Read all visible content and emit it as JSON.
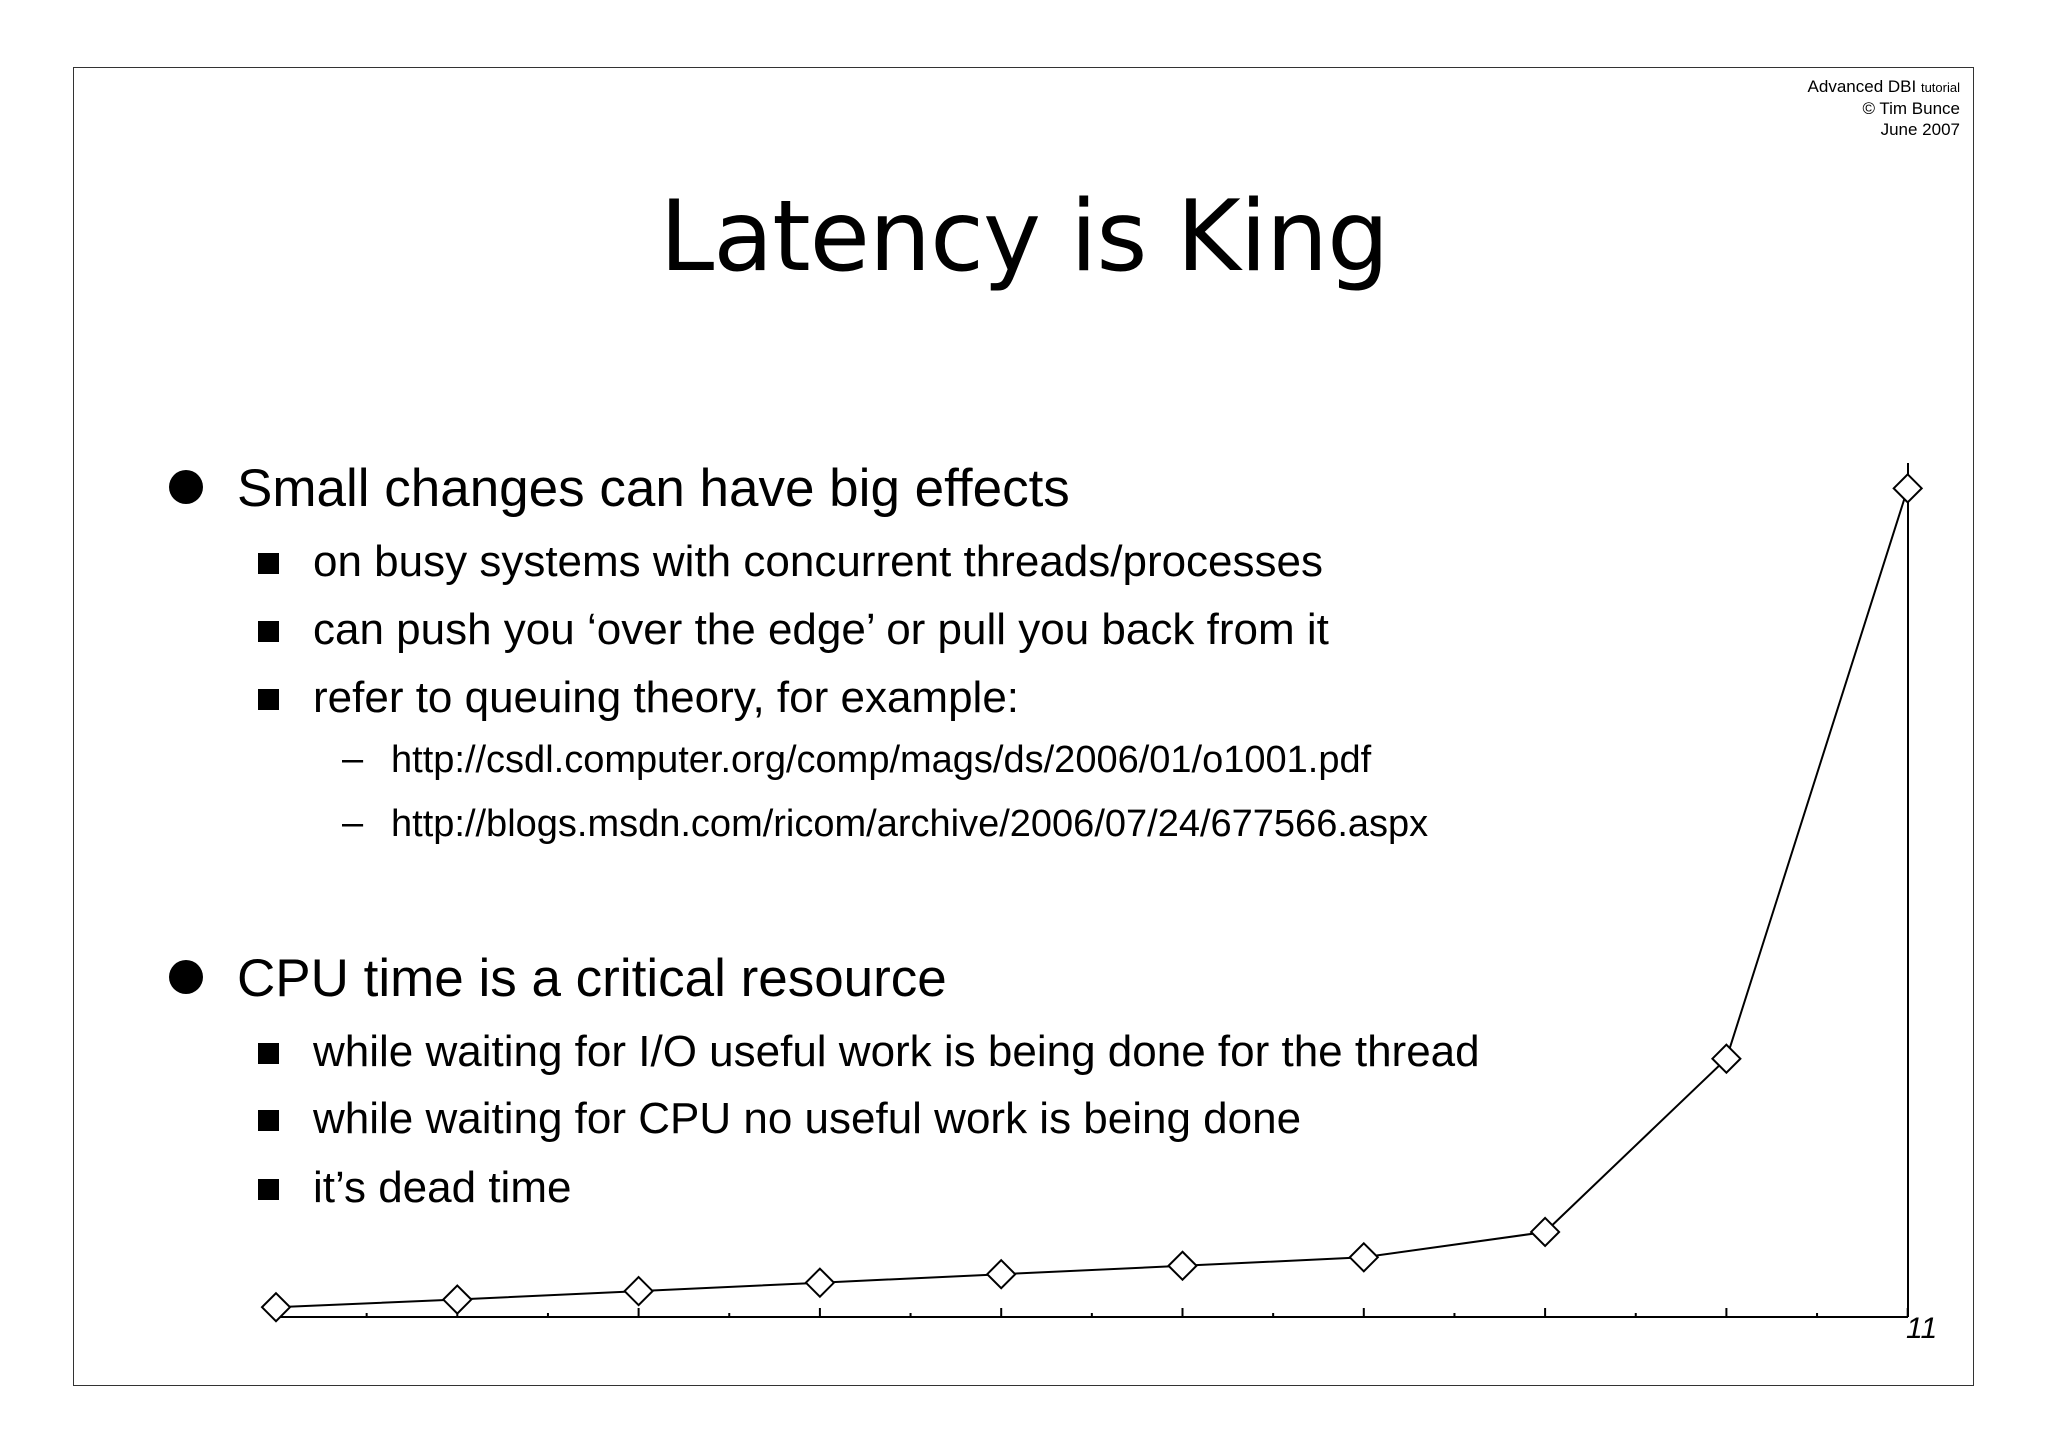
{
  "header": {
    "line1_main": "Advanced DBI",
    "line1_small": "tutorial",
    "line2": "© Tim Bunce",
    "line3": "June 2007"
  },
  "title": "Latency is King",
  "bullets": [
    {
      "text": "Small changes can have big effects",
      "subs": [
        {
          "text": "on busy systems with concurrent threads/processes"
        },
        {
          "text": "can push you ‘over the edge’ or pull you back from it"
        },
        {
          "text": "refer to queuing theory, for example:",
          "subs": [
            "http://csdl.computer.org/comp/mags/ds/2006/01/o1001.pdf",
            "http://blogs.msdn.com/ricom/archive/2006/07/24/677566.aspx"
          ]
        }
      ]
    },
    {
      "text": "CPU time is a critical resource",
      "subs": [
        {
          "text": "while waiting for I/O useful work is being done for the thread"
        },
        {
          "text": "while waiting for CPU no useful work is being done"
        },
        {
          "text": "it’s dead time"
        }
      ]
    }
  ],
  "page_number": "11",
  "chart_data": {
    "type": "line",
    "title": "",
    "xlabel": "",
    "ylabel": "",
    "x": [
      1,
      2,
      3,
      4,
      5,
      6,
      7,
      8,
      9,
      10
    ],
    "series": [
      {
        "values": [
          1,
          10,
          20,
          30,
          40,
          50,
          60,
          90,
          295,
          970
        ]
      }
    ],
    "ylim": [
      0,
      1000
    ],
    "marker": "diamond",
    "grid": false,
    "color": "#000000"
  }
}
